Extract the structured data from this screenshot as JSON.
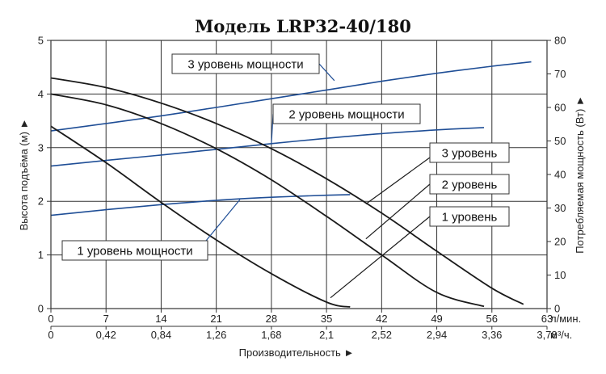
{
  "chart_data": {
    "type": "line",
    "title": "Модель LRP32-40/180",
    "xlabel": "Производительность ►",
    "ylabel_left": "Высота подъёма (м) ►",
    "ylabel_right": "Потребляемая мощность (Вт) ►",
    "x_unit_top": "л/мин.",
    "x_unit_bottom": "м³/ч.",
    "x_ticks_top": [
      "0",
      "7",
      "14",
      "21",
      "28",
      "35",
      "42",
      "49",
      "56",
      "63"
    ],
    "x_ticks_bottom": [
      "0",
      "0,42",
      "0,84",
      "1,26",
      "1,68",
      "2,1",
      "2,52",
      "2,94",
      "3,36",
      "3,78"
    ],
    "y_ticks_left": [
      "0",
      "1",
      "2",
      "3",
      "4",
      "5"
    ],
    "y_ticks_right": [
      "0",
      "10",
      "20",
      "30",
      "40",
      "50",
      "60",
      "70",
      "80"
    ],
    "xlim": [
      0,
      63
    ],
    "ylim_left": [
      0,
      5
    ],
    "ylim_right": [
      0,
      80
    ],
    "grid": true,
    "head_curves": [
      {
        "name": "3 уровень",
        "x": [
          0,
          7,
          14,
          21,
          28,
          35,
          42,
          49,
          56,
          60
        ],
        "y": [
          4.3,
          4.12,
          3.83,
          3.45,
          2.98,
          2.42,
          1.78,
          1.07,
          0.38,
          0.08
        ]
      },
      {
        "name": "2 уровень",
        "x": [
          0,
          7,
          14,
          21,
          28,
          35,
          42,
          49,
          55
        ],
        "y": [
          4.0,
          3.8,
          3.45,
          2.98,
          2.4,
          1.72,
          1.0,
          0.3,
          0.04
        ]
      },
      {
        "name": "1 уровень",
        "x": [
          0,
          7,
          14,
          21,
          28,
          35,
          38
        ],
        "y": [
          3.4,
          2.72,
          1.98,
          1.28,
          0.65,
          0.12,
          0.03
        ]
      }
    ],
    "power_curves": [
      {
        "name": "3 уровень мощности",
        "x": [
          0,
          7,
          14,
          21,
          28,
          35,
          42,
          49,
          56,
          61
        ],
        "y": [
          53,
          55.2,
          57.5,
          60,
          62.6,
          65.2,
          67.8,
          70.2,
          72.3,
          73.6
        ]
      },
      {
        "name": "2 уровень мощности",
        "x": [
          0,
          7,
          14,
          21,
          28,
          35,
          42,
          49,
          55
        ],
        "y": [
          42.5,
          44.2,
          45.8,
          47.5,
          49.2,
          50.8,
          52.2,
          53.3,
          54
        ]
      },
      {
        "name": "1 уровень мощности",
        "x": [
          0,
          7,
          14,
          21,
          28,
          35,
          38
        ],
        "y": [
          27.8,
          29.5,
          31,
          32.3,
          33.2,
          33.8,
          34
        ]
      }
    ],
    "annotations": [
      {
        "text": "3 уровень мощности",
        "series": "3 уровень мощности",
        "point_x": 36,
        "point_y": 68
      },
      {
        "text": "2 уровень мощности",
        "series": "2 уровень мощности",
        "point_x": 28,
        "point_y": 49
      },
      {
        "text": "1 уровень мощности",
        "series": "1 уровень мощности",
        "point_x": 24,
        "point_y": 32.5
      },
      {
        "text": "3 уровень",
        "series": "3 уровень",
        "point_x": 40,
        "point_y": 1.95
      },
      {
        "text": "2 уровень",
        "series": "2 уровень",
        "point_x": 40,
        "point_y": 1.3
      },
      {
        "text": "1 уровень",
        "series": "1 уровень",
        "point_x": 35.5,
        "point_y": 0.2
      }
    ],
    "colors": {
      "head_curve": "#1a1a1a",
      "power_curve": "#1f4e96",
      "grid": "#333333",
      "background": "#ffffff"
    }
  }
}
